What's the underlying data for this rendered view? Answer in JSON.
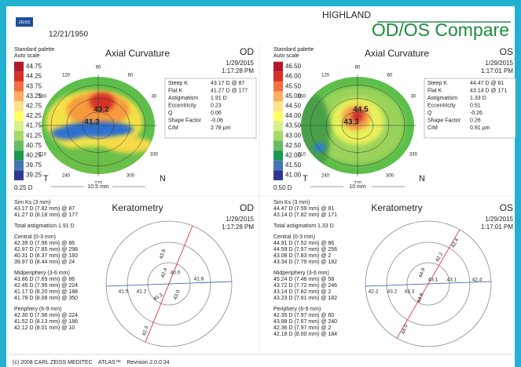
{
  "header": {
    "logo": "ZEISS",
    "date": "12/21/1950",
    "site": "HIGHLAND",
    "title": "OD/OS Compare"
  },
  "maps": [
    {
      "palette": "Standard palette",
      "scale": "Auto scale",
      "title": "Axial Curvature",
      "eye": "OD",
      "date": "1/29/2015",
      "time": "1:17:28 PM",
      "scale_labels": [
        "44.75",
        "44.25",
        "43.75",
        "43.25",
        "42.75",
        "42.25",
        "41.75",
        "41.25",
        "40.75",
        "40.25",
        "39.75",
        "39.25"
      ],
      "step": "0.25 D",
      "angles": [
        90,
        60,
        30,
        330,
        300,
        270,
        240,
        210,
        150,
        120
      ],
      "temporal": "T",
      "nasal": "N",
      "size": "10.5 mm",
      "center_values": [
        "43.2",
        "41.3"
      ],
      "stats": [
        [
          "Steep K",
          "43.17 D @ 87"
        ],
        [
          "Flat K",
          "41.27 D @ 177"
        ],
        [
          "Astigmatism",
          "1.91 D"
        ],
        [
          "Eccentricity",
          "0.23"
        ],
        [
          "Q",
          "0.06"
        ],
        [
          "Shape Factor",
          "-0.06"
        ],
        [
          "CIM",
          "2.78 µm"
        ]
      ]
    },
    {
      "palette": "Standard palette",
      "scale": "Auto scale",
      "title": "Axial Curvature",
      "eye": "OS",
      "date": "1/29/2015",
      "time": "1:17:01 PM",
      "scale_labels": [
        "46.50",
        "46.00",
        "45.50",
        "45.00",
        "44.50",
        "44.00",
        "43.50",
        "43.00",
        "42.50",
        "42.00",
        "41.50",
        "41.00"
      ],
      "step": "0.50 D",
      "angles": [
        90,
        60,
        30,
        330,
        300,
        270,
        240,
        210,
        150,
        120
      ],
      "temporal": "T",
      "nasal": "N",
      "size": "10 mm",
      "center_values": [
        "44.5",
        "43.3"
      ],
      "stats": [
        [
          "Steep K",
          "44.47 D @ 81"
        ],
        [
          "Flat K",
          "43.14 D @ 171"
        ],
        [
          "Astigmatism",
          "1.33 D"
        ],
        [
          "Eccentricity",
          "0.51"
        ],
        [
          "Q",
          "-0.26"
        ],
        [
          "Shape Factor",
          "0.26"
        ],
        [
          "CIM",
          "0.91 µm"
        ]
      ]
    }
  ],
  "keratometry": [
    {
      "title": "Keratometry",
      "eye": "OD",
      "date": "1/29/2015",
      "time": "1:17:28 PM",
      "groups": [
        {
          "heading": "Sim Ks (3 mm)",
          "lines": [
            {
              "text": "43.17 D (7.82 mm) @ 87",
              "color": "#d8232a"
            },
            {
              "text": "41.27 D (8.18 mm) @ 177",
              "color": "#2a4fa8"
            }
          ]
        },
        {
          "heading": "Total astigmatism 1.91 D",
          "lines": []
        },
        {
          "heading": "Central (0-3 mm)",
          "lines": [
            {
              "text": "42.39 D (7.96 mm) @ 86",
              "color": "#d8232a"
            },
            {
              "text": "42.97 D (7.85 mm) @ 298",
              "color": "#d8232a"
            },
            {
              "text": "40.31 D (8.37 mm) @ 160",
              "color": "#2a4fa8"
            },
            {
              "text": "39.97 D (8.44 mm) @ 24",
              "color": "#2a4fa8"
            }
          ]
        },
        {
          "heading": "Midperiphery (3-6 mm)",
          "lines": [
            {
              "text": "43.86 D (7.69 mm) @ 86",
              "color": "#d8232a"
            },
            {
              "text": "42.45 D (7.95 mm) @ 224",
              "color": "#d8232a"
            },
            {
              "text": "41.17 D (8.20 mm) @ 188",
              "color": "#2a4fa8"
            },
            {
              "text": "41.78 D (8.08 mm) @ 350",
              "color": "#2a4fa8"
            }
          ]
        },
        {
          "heading": "Periphery (6-9 mm)",
          "lines": [
            {
              "text": "42.30 D (7.98 mm) @ 224",
              "color": "#d8232a"
            },
            {
              "text": "41.52 D (8.13 mm) @ 186",
              "color": "#2a4fa8"
            },
            {
              "text": "42.12 D (8.01 mm) @ 10",
              "color": "#2a4fa8"
            }
          ]
        }
      ],
      "diagram": [
        {
          "text": "43.9",
          "color": "#d8232a"
        },
        {
          "text": "42.4",
          "color": "#d8232a"
        },
        {
          "text": "40.0",
          "color": "#2a4fa8"
        },
        {
          "text": "41.8",
          "color": "#2a4fa8"
        },
        {
          "text": "41.5",
          "color": "#2a4fa8"
        },
        {
          "text": "41.2",
          "color": "#2a4fa8"
        },
        {
          "text": "40.3",
          "color": "#2a4fa8"
        },
        {
          "text": "43.0",
          "color": "#d8232a"
        },
        {
          "text": "42.3",
          "color": "#d8232a"
        }
      ]
    },
    {
      "title": "Keratometry",
      "eye": "OS",
      "date": "1/29/2015",
      "time": "1:17:01 PM",
      "groups": [
        {
          "heading": "Sim Ks (3 mm)",
          "lines": [
            {
              "text": "44.47 D (7.59 mm) @ 81",
              "color": "#d8232a"
            },
            {
              "text": "43.14 D (7.82 mm) @ 171",
              "color": "#2a4fa8"
            }
          ]
        },
        {
          "heading": "Total astigmatism 1.33 D",
          "lines": []
        },
        {
          "heading": "Central (0-3 mm)",
          "lines": [
            {
              "text": "44.91 D (7.52 mm) @ 86",
              "color": "#d8232a"
            },
            {
              "text": "44.59 D (7.57 mm) @ 256",
              "color": "#d8232a"
            },
            {
              "text": "43.08 D (7.83 mm) @ 2",
              "color": "#2a4fa8"
            },
            {
              "text": "43.34 D (7.79 mm) @ 182",
              "color": "#2a4fa8"
            }
          ]
        },
        {
          "heading": "Midperiphery (3-6 mm)",
          "lines": [
            {
              "text": "45.24 D (7.46 mm) @ 58",
              "color": "#d8232a"
            },
            {
              "text": "43.72 D (7.72 mm) @ 246",
              "color": "#d8232a"
            },
            {
              "text": "43.14 D (7.82 mm) @ 2",
              "color": "#2a4fa8"
            },
            {
              "text": "43.23 D (7.81 mm) @ 182",
              "color": "#2a4fa8"
            }
          ]
        },
        {
          "heading": "Periphery (6-9 mm)",
          "lines": [
            {
              "text": "42.35 D (7.97 mm) @ 60",
              "color": "#d8232a"
            },
            {
              "text": "43.98 D (7.67 mm) @ 240",
              "color": "#d8232a"
            },
            {
              "text": "42.36 D (7.97 mm) @ 2",
              "color": "#2a4fa8"
            },
            {
              "text": "42.18 D (8.00 mm) @ 184",
              "color": "#2a4fa8"
            }
          ]
        }
      ],
      "diagram": [
        {
          "text": "42.4",
          "color": "#d8232a"
        },
        {
          "text": "42.2",
          "color": "#d8232a"
        },
        {
          "text": "44.9",
          "color": "#d8232a"
        },
        {
          "text": "43.1",
          "color": "#2a4fa8"
        },
        {
          "text": "43.1",
          "color": "#2a4fa8"
        },
        {
          "text": "42.4",
          "color": "#2a4fa8"
        },
        {
          "text": "42.2",
          "color": "#2a4fa8"
        },
        {
          "text": "43.2",
          "color": "#2a4fa8"
        },
        {
          "text": "43.3",
          "color": "#2a4fa8"
        },
        {
          "text": "44.8",
          "color": "#d8232a"
        },
        {
          "text": "44.0",
          "color": "#d8232a"
        }
      ]
    }
  ],
  "footer": "(c) 2008 CARL ZEISS MEDITEC    ATLAS™    Revision 2.0.0.34"
}
